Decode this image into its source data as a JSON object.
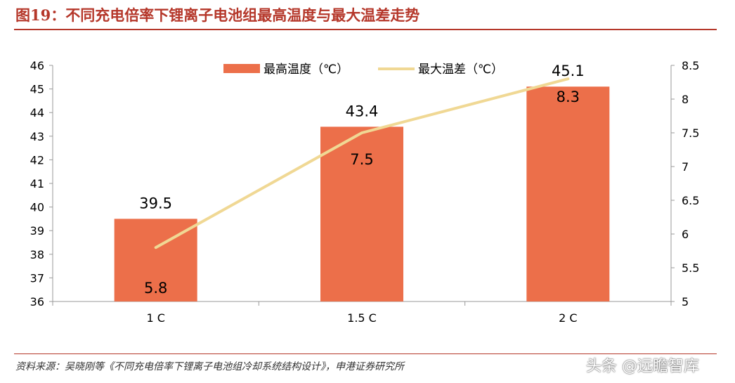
{
  "figure": {
    "title": "图19：不同充电倍率下锂离子电池组最高温度与最大温差走势",
    "source": "资料来源：吴晓刚等《不同充电倍率下锂离子电池组冷却系统结构设计》，申港证券研究所",
    "watermark": "头条 @远瞻智库"
  },
  "chart_data": {
    "type": "bar",
    "categories": [
      "1 C",
      "1.5 C",
      "2 C"
    ],
    "series": [
      {
        "name": "最高温度（℃）",
        "type": "bar",
        "axis": "left",
        "values": [
          39.5,
          43.4,
          45.1
        ],
        "color": "#ec6f4a"
      },
      {
        "name": "最大温差（℃）",
        "type": "line",
        "axis": "right",
        "values": [
          5.8,
          7.5,
          8.3
        ],
        "color": "#f0d894"
      }
    ],
    "y_left": {
      "min": 36,
      "max": 46,
      "ticks": [
        "36",
        "37",
        "38",
        "39",
        "40",
        "41",
        "42",
        "43",
        "44",
        "45",
        "46"
      ]
    },
    "y_right": {
      "min": 5,
      "max": 8.5,
      "ticks": [
        "5",
        "5.5",
        "6",
        "6.5",
        "7",
        "7.5",
        "8",
        "8.5"
      ]
    },
    "bar_labels": [
      "39.5",
      "43.4",
      "45.1"
    ],
    "line_labels": [
      "5.8",
      "7.5",
      "8.3"
    ],
    "legend_position": "top",
    "grid": false
  }
}
